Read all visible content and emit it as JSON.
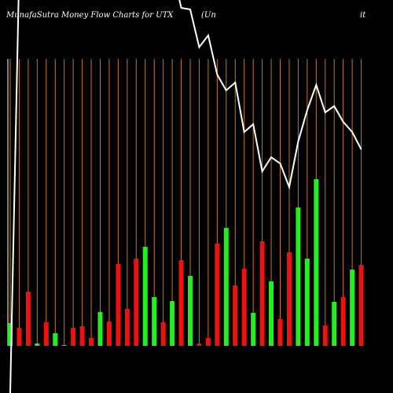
{
  "chart_data": {
    "type": "money_flow",
    "title": "MunafaSutra  Money Flow  Charts for UTX",
    "subtitle_left": "(Un",
    "subtitle_right": "it",
    "bar_values": [
      29,
      23,
      69,
      3,
      30,
      16,
      1,
      23,
      25,
      10,
      43,
      31,
      104,
      47,
      111,
      126,
      62,
      30,
      57,
      109,
      89,
      3,
      10,
      130,
      150,
      77,
      98,
      42,
      133,
      82,
      34,
      119,
      176,
      111,
      212,
      26,
      56,
      62,
      97,
      103
    ],
    "bar_colors": [
      "#22ee22",
      "#ee1111",
      "#ee1111",
      "#22ee22",
      "#ee1111",
      "#22ee22",
      "#22ee22",
      "#ee1111",
      "#ee1111",
      "#ee1111",
      "#22ee22",
      "#ee1111",
      "#ee1111",
      "#ee1111",
      "#ee1111",
      "#22ee22",
      "#22ee22",
      "#ee1111",
      "#22ee22",
      "#ee1111",
      "#22ee22",
      "#ee1111",
      "#ee1111",
      "#ee1111",
      "#22ee22",
      "#ee1111",
      "#ee1111",
      "#22ee22",
      "#ee1111",
      "#22ee22",
      "#ee1111",
      "#ee1111",
      "#22ee22",
      "#22ee22",
      "#22ee22",
      "#ee1111",
      "#22ee22",
      "#ee1111",
      "#22ee22",
      "#ee1111"
    ],
    "bar_ylim": [
      0,
      440
    ],
    "line_values": [
      0,
      540,
      540,
      540,
      540,
      540,
      540,
      540,
      540,
      540,
      540,
      540,
      540,
      540,
      540,
      540,
      540,
      540,
      540,
      490,
      488,
      440,
      455,
      405,
      385,
      395,
      332,
      342,
      282,
      300,
      292,
      262,
      320,
      360,
      392,
      357,
      365,
      345,
      332,
      310
    ],
    "line_ylim": [
      0,
      500
    ],
    "line_color": "#ffffff",
    "grid_color": "#c87a14"
  }
}
